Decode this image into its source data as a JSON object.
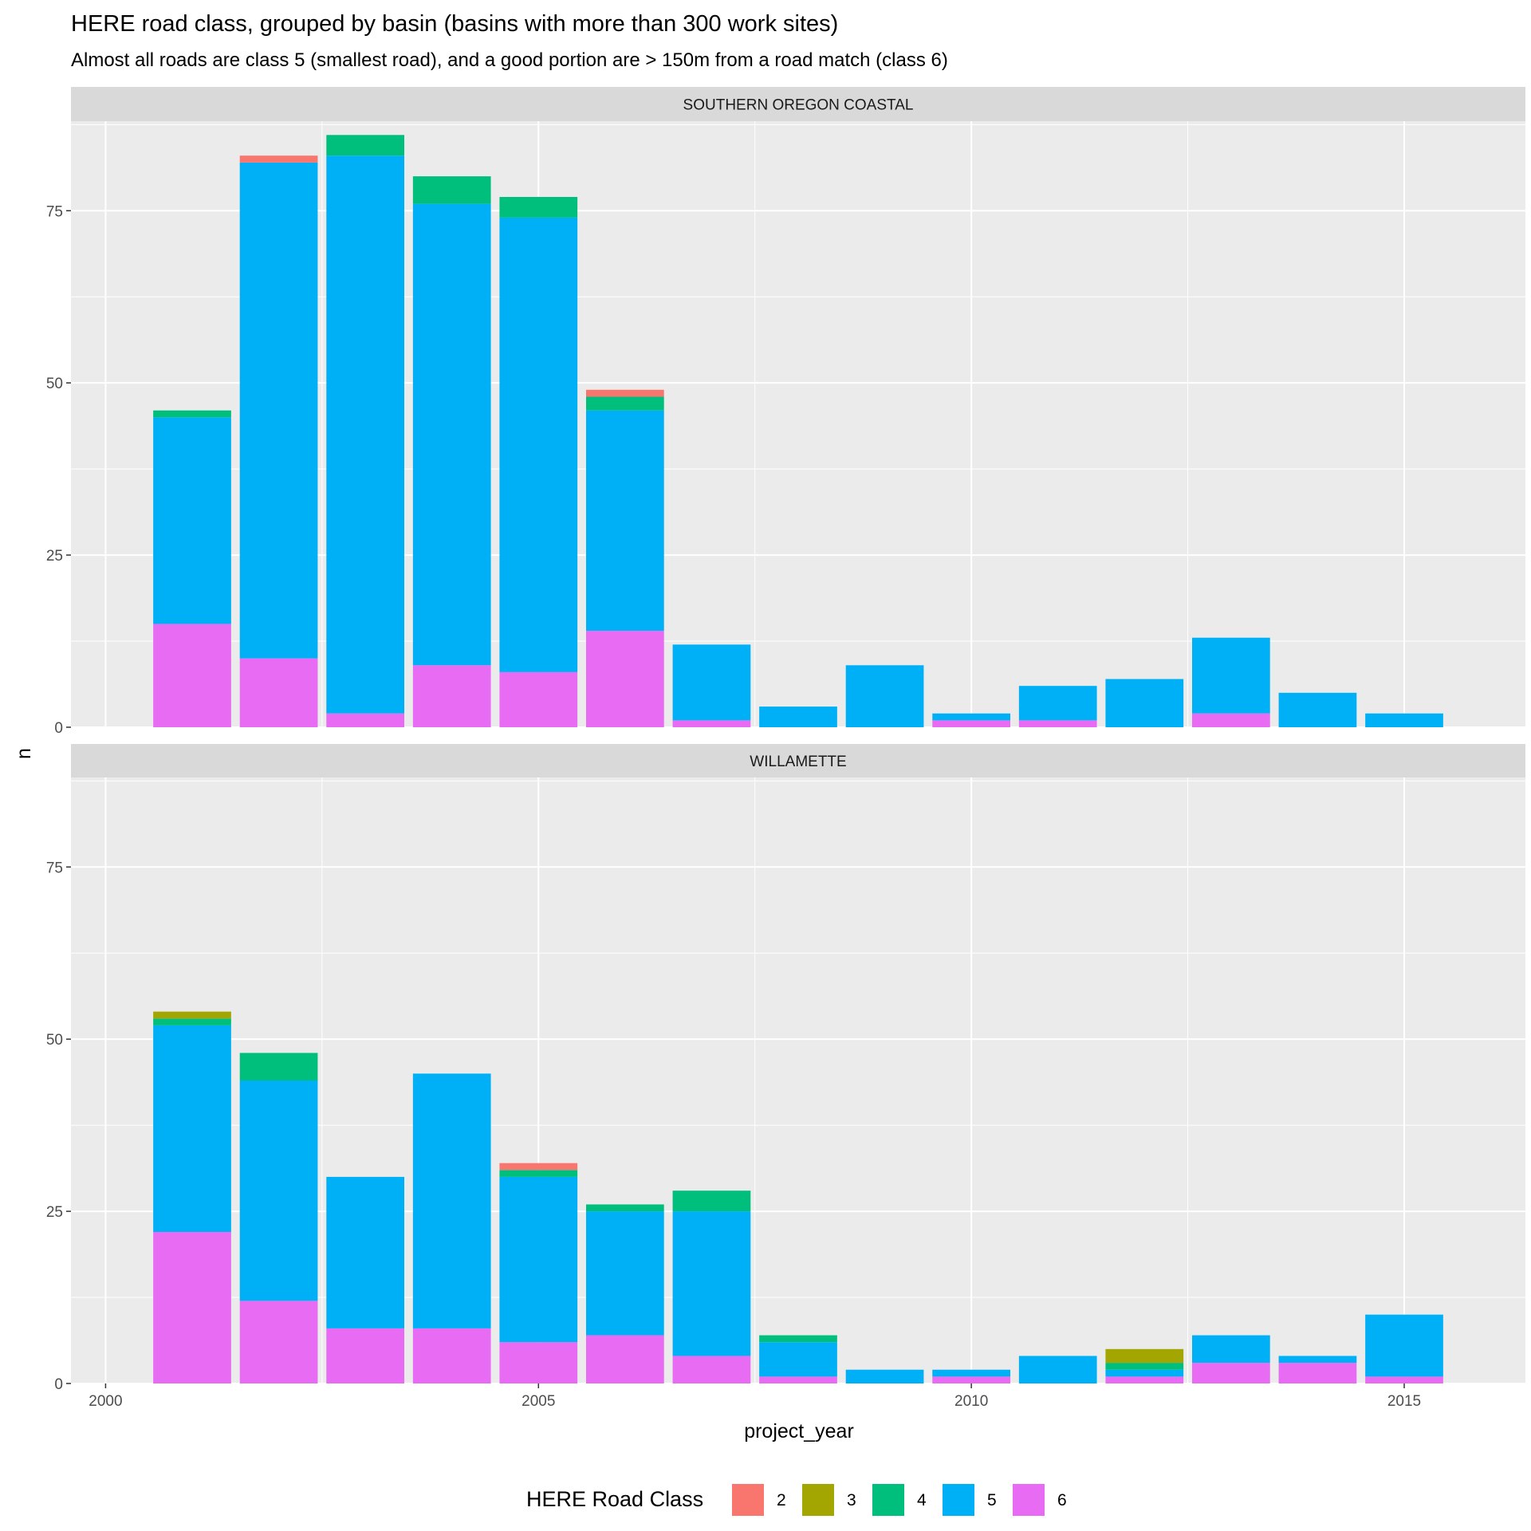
{
  "chart_data": {
    "type": "bar",
    "stacked": true,
    "title": "HERE road class, grouped by basin (basins with more than 300 work sites)",
    "subtitle": "Almost all roads are class 5 (smallest road), and a good portion are > 150m from a road match (class 6)",
    "xlabel": "project_year",
    "ylabel": "n",
    "xlim": [
      1999.6,
      2016.4
    ],
    "ylim": [
      0,
      88
    ],
    "x_ticks": [
      2000,
      2005,
      2010,
      2015
    ],
    "y_ticks": [
      0,
      25,
      50,
      75
    ],
    "grid": true,
    "legend": {
      "title": "HERE Road Class",
      "placement": "bottom",
      "entries": [
        {
          "key": "2",
          "label": "2",
          "color": "#F8766D"
        },
        {
          "key": "3",
          "label": "3",
          "color": "#A3A500"
        },
        {
          "key": "4",
          "label": "4",
          "color": "#00BF7D"
        },
        {
          "key": "5",
          "label": "5",
          "color": "#00B0F6"
        },
        {
          "key": "6",
          "label": "6",
          "color": "#E76BF3"
        }
      ]
    },
    "stack_order_bottom_to_top": [
      "6",
      "5",
      "4",
      "3",
      "2"
    ],
    "facets": [
      {
        "name": "SOUTHERN OREGON COASTAL",
        "x": [
          2001,
          2002,
          2003,
          2004,
          2005,
          2006,
          2007,
          2008,
          2009,
          2010,
          2011,
          2012,
          2013,
          2014,
          2015
        ],
        "series": [
          {
            "class": "2",
            "values": [
              0,
              1,
              0,
              0,
              0,
              1,
              0,
              0,
              0,
              0,
              0,
              0,
              0,
              0,
              0
            ]
          },
          {
            "class": "3",
            "values": [
              0,
              0,
              0,
              0,
              0,
              0,
              0,
              0,
              0,
              0,
              0,
              0,
              0,
              0,
              0
            ]
          },
          {
            "class": "4",
            "values": [
              1,
              0,
              3,
              4,
              3,
              2,
              0,
              0,
              0,
              0,
              0,
              0,
              0,
              0,
              0
            ]
          },
          {
            "class": "5",
            "values": [
              30,
              72,
              81,
              67,
              66,
              32,
              11,
              3,
              9,
              1,
              5,
              7,
              11,
              5,
              2
            ]
          },
          {
            "class": "6",
            "values": [
              15,
              10,
              2,
              9,
              8,
              14,
              1,
              0,
              0,
              1,
              1,
              0,
              2,
              0,
              0
            ]
          }
        ]
      },
      {
        "name": "WILLAMETTE",
        "x": [
          2001,
          2002,
          2003,
          2004,
          2005,
          2006,
          2007,
          2008,
          2009,
          2010,
          2011,
          2012,
          2013,
          2014,
          2015
        ],
        "series": [
          {
            "class": "2",
            "values": [
              0,
              0,
              0,
              0,
              1,
              0,
              0,
              0,
              0,
              0,
              0,
              0,
              0,
              0,
              0
            ]
          },
          {
            "class": "3",
            "values": [
              1,
              0,
              0,
              0,
              0,
              0,
              0,
              0,
              0,
              0,
              0,
              2,
              0,
              0,
              0
            ]
          },
          {
            "class": "4",
            "values": [
              1,
              4,
              0,
              0,
              1,
              1,
              3,
              1,
              0,
              0,
              0,
              1,
              0,
              0,
              0
            ]
          },
          {
            "class": "5",
            "values": [
              30,
              32,
              22,
              37,
              24,
              18,
              21,
              5,
              2,
              1,
              4,
              1,
              4,
              1,
              9
            ]
          },
          {
            "class": "6",
            "values": [
              22,
              12,
              8,
              8,
              6,
              7,
              4,
              1,
              0,
              1,
              0,
              1,
              3,
              3,
              1
            ]
          }
        ]
      }
    ]
  }
}
